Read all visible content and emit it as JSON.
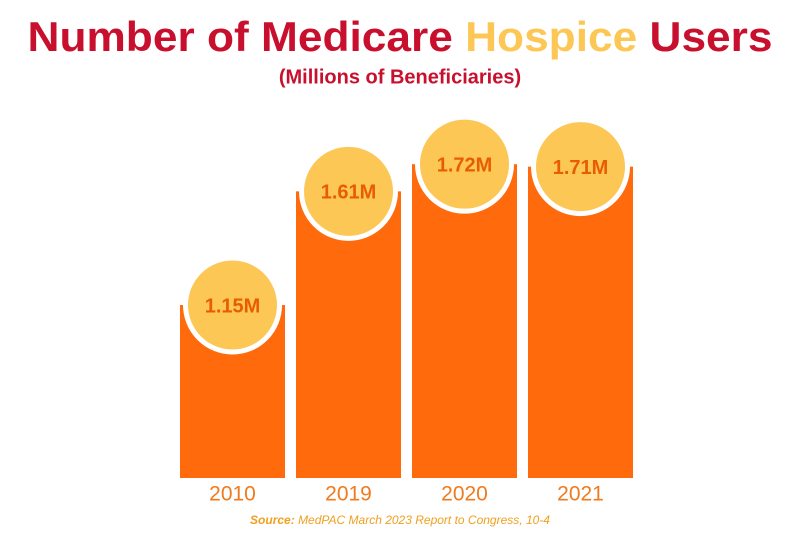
{
  "chart_data": {
    "type": "bar",
    "title": [
      "Number of Medicare",
      "Hospice",
      "Users"
    ],
    "title_color": "#c8102e",
    "title_highlight_color": "#fcc755",
    "subtitle": "(Millions of Beneficiaries)",
    "categories": [
      "2010",
      "2019",
      "2020",
      "2021"
    ],
    "values": [
      1.15,
      1.61,
      1.72,
      1.71
    ],
    "value_labels": [
      "1.15M",
      "1.61M",
      "1.72M",
      "1.71M"
    ],
    "color": "#ff6a0d",
    "label_badge_color": "#fcc755",
    "ylim": [
      0.45,
      2.0
    ],
    "source": {
      "label": "Source:",
      "text": "MedPAC March 2023 Report to Congress, 10-4"
    }
  }
}
